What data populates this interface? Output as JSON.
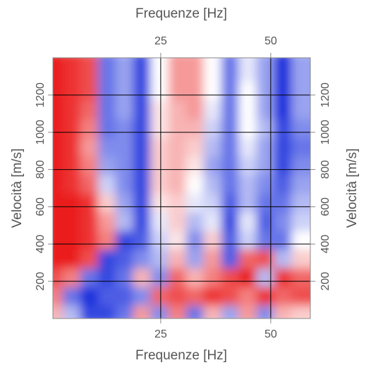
{
  "chart_data": {
    "type": "heatmap",
    "xlabel": "Frequenze [Hz]",
    "ylabel": "Velocità [m/s]",
    "x": [
      2,
      6,
      10,
      14,
      18,
      22,
      26,
      30,
      34,
      38,
      42,
      46,
      50,
      54,
      58
    ],
    "y": [
      50,
      150,
      250,
      350,
      450,
      550,
      650,
      750,
      850,
      950,
      1050,
      1150,
      1250,
      1350
    ],
    "z": [
      [
        0.3,
        -0.3,
        -0.8,
        -0.8,
        -0.6,
        0.4,
        -0.5,
        0.5,
        -0.6,
        0.3,
        -0.4,
        0.4,
        -0.5,
        0.3,
        0.2
      ],
      [
        0.5,
        -0.6,
        -0.9,
        -0.7,
        -0.7,
        -0.5,
        0.6,
        0.7,
        0.6,
        0.8,
        0.7,
        0.5,
        0.8,
        0.6,
        0.7
      ],
      [
        0.7,
        0.5,
        -0.6,
        -0.8,
        -0.6,
        0.3,
        -0.5,
        0.6,
        0.3,
        0.5,
        0.7,
        0.9,
        -0.3,
        0.8,
        0.6
      ],
      [
        0.9,
        0.9,
        0.7,
        -0.8,
        -0.7,
        -0.5,
        -0.3,
        0.3,
        -0.4,
        0.4,
        -0.7,
        0.6,
        0.7,
        -0.3,
        0.2
      ],
      [
        0.9,
        0.9,
        0.8,
        0.5,
        -0.8,
        -0.7,
        -0.2,
        0.1,
        -0.5,
        0.2,
        -0.7,
        -0.2,
        -0.6,
        -0.6,
        0
      ],
      [
        0.9,
        0.9,
        0.8,
        0.4,
        -0.3,
        -0.8,
        -0.1,
        0.2,
        -0.3,
        -0.1,
        -0.8,
        -0.1,
        -0.7,
        -0.5,
        -0.2
      ],
      [
        0.9,
        0.9,
        0.8,
        0.2,
        -0.4,
        -0.8,
        0.1,
        0.2,
        -0.1,
        -0.2,
        -0.7,
        -0.3,
        -0.6,
        -0.6,
        -0.3
      ],
      [
        0.9,
        0.8,
        0.6,
        -0.2,
        -0.5,
        -0.8,
        0.2,
        0.3,
        0,
        -0.3,
        -0.6,
        -0.3,
        -0.5,
        -0.7,
        -0.4
      ],
      [
        0.9,
        0.8,
        0.5,
        -0.4,
        -0.5,
        -0.8,
        0.2,
        0.3,
        0.1,
        -0.4,
        -0.6,
        -0.2,
        -0.4,
        -0.8,
        -0.5
      ],
      [
        0.9,
        0.8,
        0.4,
        -0.5,
        -0.5,
        -0.8,
        0.2,
        0.3,
        0.2,
        -0.3,
        -0.6,
        -0.1,
        -0.4,
        -0.8,
        -0.6
      ],
      [
        0.9,
        0.8,
        0.5,
        -0.6,
        -0.5,
        -0.8,
        0.1,
        0.3,
        0.3,
        -0.2,
        -0.6,
        0,
        -0.3,
        -0.8,
        -0.5
      ],
      [
        0.9,
        0.8,
        0.6,
        -0.6,
        -0.4,
        -0.8,
        0.1,
        0.3,
        0.4,
        -0.1,
        -0.6,
        0,
        -0.4,
        -0.9,
        -0.4
      ],
      [
        0.9,
        0.8,
        0.7,
        -0.6,
        -0.4,
        -0.8,
        0,
        0.4,
        0.4,
        0,
        -0.6,
        0,
        -0.4,
        -0.9,
        -0.4
      ],
      [
        0.9,
        0.8,
        0.7,
        -0.6,
        -0.4,
        -0.8,
        0,
        0.4,
        0.4,
        0,
        -0.6,
        -0.1,
        -0.4,
        -0.9,
        -0.4
      ]
    ],
    "zlim": [
      -1,
      1
    ],
    "colors": [
      "#0018d8",
      "#ffffff",
      "#e80000"
    ],
    "xlim": [
      0.5,
      59
    ],
    "ylim": [
      0,
      1400
    ],
    "xticks": [
      25,
      50
    ],
    "yticks": [
      200,
      400,
      600,
      800,
      1000,
      1200
    ],
    "grid": true,
    "grid_color": "#000000"
  }
}
